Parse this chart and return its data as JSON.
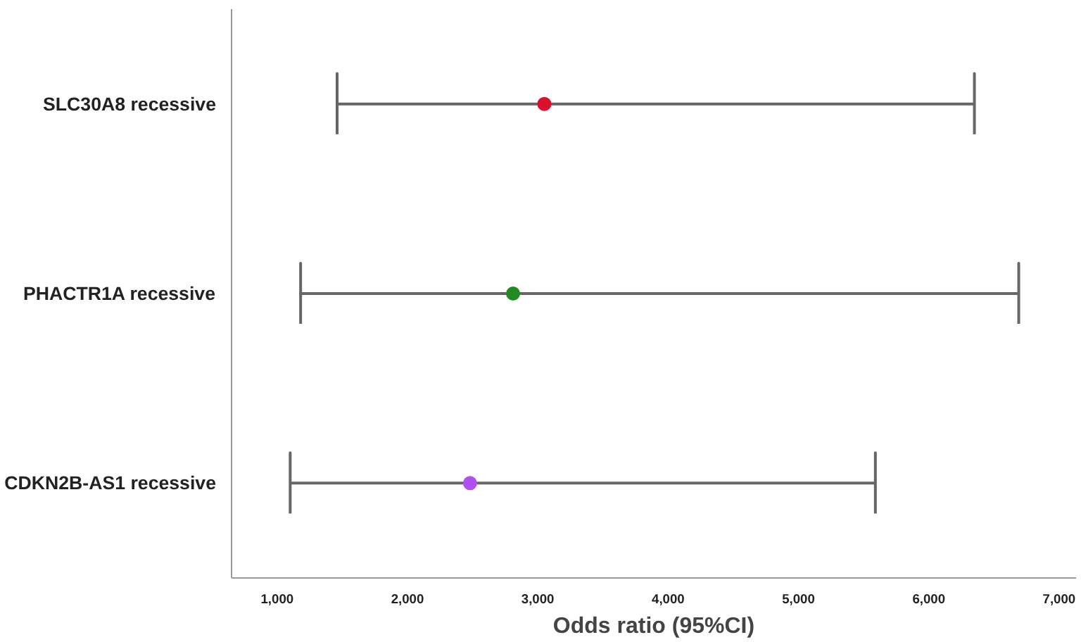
{
  "chart_data": {
    "type": "scatter",
    "orientation": "horizontal",
    "xlabel": "Odds ratio (95%CI)",
    "categories": [
      "SLC30A8 recessive",
      "PHACTR1A recessive",
      "CDKN2B-AS1 recessive"
    ],
    "values": [
      3050,
      2810,
      2480
    ],
    "colors": [
      "#d9102e",
      "#218a21",
      "#b050f0"
    ],
    "errors": [
      [
        1460,
        6350
      ],
      [
        1180,
        6690
      ],
      [
        1100,
        5590
      ]
    ],
    "xlim": [
      650,
      7130
    ],
    "xticks": [
      {
        "value": 1000,
        "label": "1,000"
      },
      {
        "value": 2000,
        "label": "2,000"
      },
      {
        "value": 3000,
        "label": "3,000"
      },
      {
        "value": 4000,
        "label": "4,000"
      },
      {
        "value": 5000,
        "label": "5,000"
      },
      {
        "value": 6000,
        "label": "6,000"
      },
      {
        "value": 7000,
        "label": "7,000"
      }
    ],
    "grid": false,
    "marker": "circle"
  }
}
